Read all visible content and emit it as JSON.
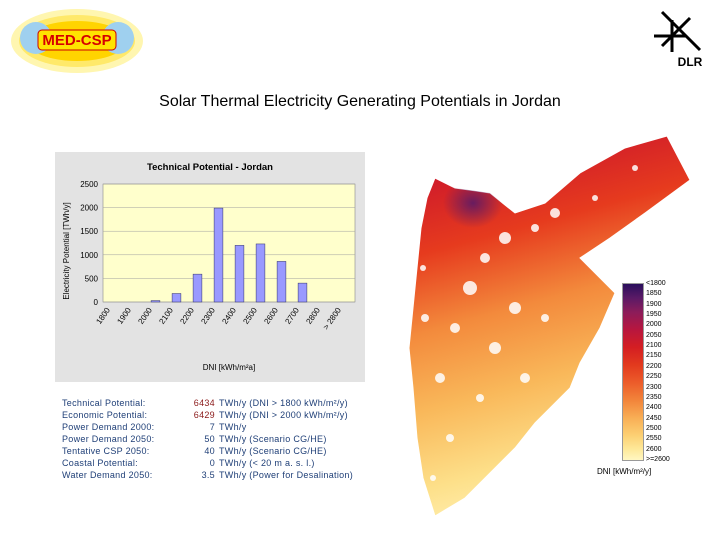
{
  "header": {
    "left_logo_text": "MED-CSP",
    "right_logo_text": "DLR"
  },
  "slide_title": "Solar Thermal Electricity Generating Potentials in Jordan",
  "chart_data": {
    "type": "bar",
    "title": "Technical Potential - Jordan",
    "xlabel": "DNI [kWh/m²a]",
    "ylabel": "Electricity Potential [TWh/y]",
    "categories": [
      "1800",
      "1900",
      "2000",
      "2100",
      "2200",
      "2300",
      "2400",
      "2500",
      "2600",
      "2700",
      "2800",
      "> 2800"
    ],
    "values": [
      0,
      0,
      30,
      180,
      590,
      1990,
      1200,
      1230,
      860,
      400,
      0,
      0
    ],
    "ylim": [
      0,
      2500
    ],
    "yticks": [
      0,
      500,
      1000,
      1500,
      2000,
      2500
    ],
    "grid": true,
    "bar_color": "#9999ff",
    "plot_bg": "#ffffcc"
  },
  "stats": [
    {
      "label": "Technical Potential:",
      "value": "6434",
      "note": "TWh/y (DNI > 1800 kWh/m²/y)",
      "highlight": true
    },
    {
      "label": "Economic Potential:",
      "value": "6429",
      "note": "TWh/y (DNI > 2000 kWh/m²/y)",
      "highlight": true
    },
    {
      "label": "Power Demand 2000:",
      "value": "7",
      "note": "TWh/y",
      "highlight": false
    },
    {
      "label": "Power Demand 2050:",
      "value": "50",
      "note": "TWh/y (Scenario CG/HE)",
      "highlight": false
    },
    {
      "label": "Tentative CSP 2050:",
      "value": "40",
      "note": "TWh/y (Scenario CG/HE)",
      "highlight": false
    },
    {
      "label": "Coastal Potential:",
      "value": "0",
      "note": "TWh/y (< 20 m a. s. l.)",
      "highlight": false
    },
    {
      "label": "Water Demand 2050:",
      "value": "3.5",
      "note": "TWh/y (Power for Desalination)",
      "highlight": false
    }
  ],
  "map_legend": {
    "labels": [
      "<1800",
      "1850",
      "1900",
      "1950",
      "2000",
      "2050",
      "2100",
      "2150",
      "2200",
      "2250",
      "2300",
      "2350",
      "2400",
      "2450",
      "2500",
      "2550",
      "2600",
      ">=2600"
    ],
    "unit": "DNI [kWh/m²/y]"
  }
}
